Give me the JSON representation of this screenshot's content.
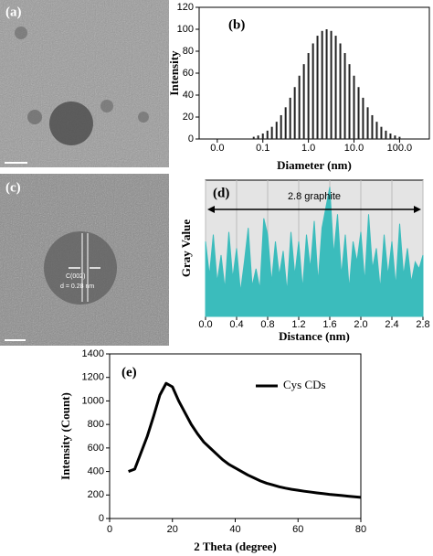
{
  "images": [
    {
      "label": "(a)"
    },
    {
      "label": "(c)",
      "annotations": [
        "C(002)",
        "d = 0.28 nm"
      ]
    }
  ],
  "chart_data": [
    {
      "type": "bar",
      "annotation": "(b)",
      "xlabel": "Diameter (nm)",
      "ylabel": "Intensity",
      "xscale": "log",
      "color": "#222222",
      "x": [
        0.063,
        0.079,
        0.1,
        0.126,
        0.158,
        0.2,
        0.251,
        0.316,
        0.398,
        0.501,
        0.631,
        0.794,
        1,
        1.26,
        1.58,
        2.0,
        2.51,
        3.16,
        3.98,
        5.01,
        6.31,
        7.94,
        10,
        12.6,
        15.8,
        20,
        25.1,
        31.6,
        39.8,
        50.1,
        63.1,
        79.4,
        100
      ],
      "values": [
        2.0,
        3.2,
        5.0,
        7.6,
        11.1,
        15.7,
        21.7,
        28.9,
        37.6,
        47.3,
        57.7,
        68.2,
        78.3,
        87.1,
        94.1,
        98.5,
        100,
        98.5,
        94.1,
        87.1,
        78.3,
        68.2,
        57.7,
        47.3,
        37.6,
        28.9,
        21.7,
        15.7,
        11.1,
        7.6,
        5.0,
        3.2,
        2.0
      ],
      "xlim": [
        0.004,
        450
      ],
      "xticks": [
        {
          "value": 0.01,
          "label": "0.0"
        },
        0.1,
        {
          "value": 1,
          "label": "1.0"
        },
        {
          "value": 10,
          "label": "10.0"
        },
        {
          "value": 100,
          "label": "100.0"
        }
      ],
      "ylim": [
        0,
        120
      ],
      "yticks": [
        0,
        20,
        40,
        60,
        80,
        100,
        120
      ]
    },
    {
      "type": "area",
      "annotation": "(d)",
      "note": "2.8 graphite",
      "xlabel": "Distance (nm)",
      "ylabel": "Gray Value",
      "color": "#3bbcbc",
      "background": "#e4e4e4",
      "grid": true,
      "x": [
        0,
        0.05,
        0.1,
        0.15,
        0.2,
        0.25,
        0.3,
        0.35,
        0.4,
        0.45,
        0.5,
        0.55,
        0.6,
        0.65,
        0.7,
        0.75,
        0.8,
        0.85,
        0.9,
        0.95,
        1,
        1.05,
        1.1,
        1.15,
        1.2,
        1.25,
        1.3,
        1.35,
        1.4,
        1.45,
        1.5,
        1.55,
        1.6,
        1.65,
        1.7,
        1.75,
        1.8,
        1.85,
        1.9,
        1.95,
        2,
        2.05,
        2.1,
        2.15,
        2.2,
        2.25,
        2.3,
        2.35,
        2.4,
        2.45,
        2.5,
        2.55,
        2.6,
        2.65,
        2.7,
        2.75,
        2.8
      ],
      "values": [
        55,
        30,
        60,
        25,
        45,
        20,
        62,
        28,
        50,
        18,
        40,
        65,
        22,
        35,
        20,
        72,
        60,
        25,
        55,
        30,
        48,
        18,
        62,
        30,
        55,
        20,
        60,
        35,
        70,
        25,
        65,
        80,
        95,
        45,
        75,
        30,
        60,
        20,
        55,
        40,
        62,
        25,
        75,
        35,
        50,
        20,
        60,
        30,
        55,
        22,
        68,
        30,
        50,
        25,
        40,
        35,
        45
      ],
      "xlim": [
        0,
        2.8
      ],
      "xticks": [
        {
          "value": 0,
          "label": "0.0"
        },
        0.4,
        0.8,
        1.2,
        1.6,
        {
          "value": 2,
          "label": "2.0"
        },
        2.4,
        2.8
      ],
      "ylim": [
        0,
        100
      ]
    },
    {
      "type": "line",
      "annotation": "(e)",
      "xlabel": "2 Theta (degree)",
      "ylabel": "Intensity (Count)",
      "legend": "upper right",
      "x": [
        6,
        8,
        10,
        12,
        14,
        16,
        18,
        20,
        22,
        24,
        26,
        28,
        30,
        32,
        34,
        36,
        38,
        40,
        42,
        44,
        46,
        48,
        50,
        52,
        54,
        56,
        58,
        60,
        62,
        64,
        66,
        68,
        70,
        72,
        74,
        76,
        78,
        80
      ],
      "series": [
        {
          "name": "Cys CDs",
          "color": "#000000",
          "values": [
            400,
            420,
            560,
            700,
            870,
            1050,
            1150,
            1120,
            1000,
            900,
            800,
            720,
            650,
            600,
            550,
            500,
            460,
            430,
            400,
            370,
            345,
            320,
            300,
            285,
            270,
            258,
            248,
            240,
            232,
            225,
            218,
            212,
            205,
            200,
            195,
            190,
            185,
            180
          ]
        }
      ],
      "xlim": [
        0,
        80
      ],
      "xticks": [
        0,
        20,
        40,
        60,
        80
      ],
      "ylim": [
        0,
        1400
      ],
      "yticks": [
        0,
        200,
        400,
        600,
        800,
        1000,
        1200,
        1400
      ]
    }
  ]
}
